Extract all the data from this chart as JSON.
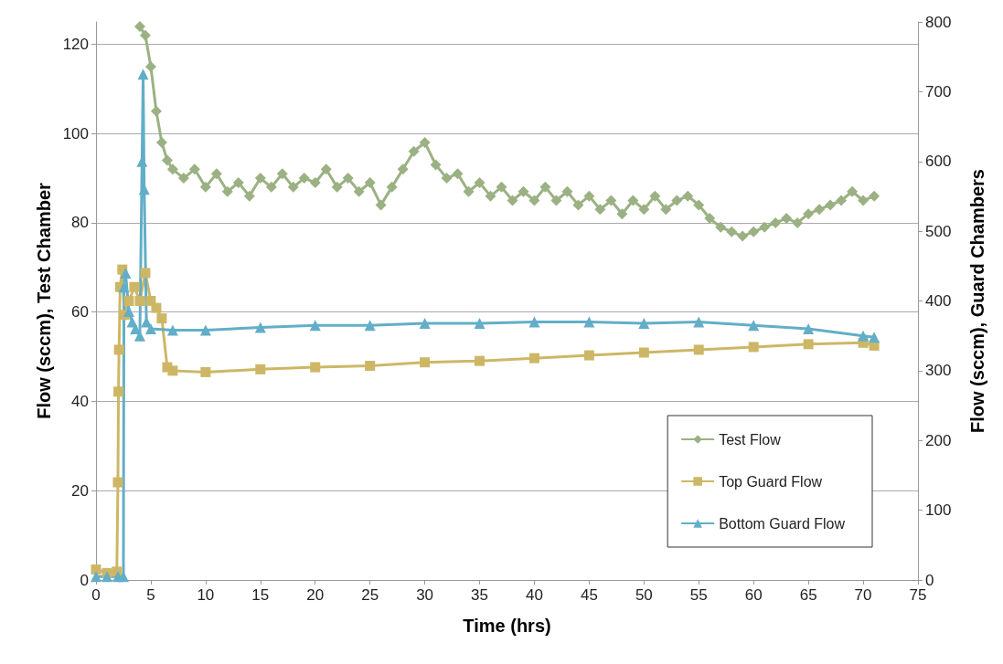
{
  "chart_data": {
    "type": "line",
    "xlabel": "Time (hrs)",
    "ylabel": "Flow (sccm), Test Chamber",
    "y2label": "Flow (sccm), Guard Chambers",
    "xlim": [
      0,
      75
    ],
    "xticks": [
      0,
      5,
      10,
      15,
      20,
      25,
      30,
      35,
      40,
      45,
      50,
      55,
      60,
      65,
      70,
      75
    ],
    "ylim": [
      0,
      125
    ],
    "yticks": [
      0,
      20,
      40,
      60,
      80,
      100,
      120
    ],
    "y2lim": [
      0,
      800
    ],
    "y2ticks": [
      0,
      100,
      200,
      300,
      400,
      500,
      600,
      700,
      800
    ],
    "grid": "y",
    "legend": "bottom right",
    "series": [
      {
        "name": "Test Flow",
        "color": "#9bb183",
        "marker": "diamond",
        "x": [
          4.0,
          4.5,
          5,
          5.5,
          6,
          6.5,
          7,
          8,
          9,
          10,
          11,
          12,
          13,
          14,
          15,
          16,
          17,
          18,
          19,
          20,
          21,
          22,
          23,
          24,
          25,
          26,
          27,
          28,
          29,
          30,
          31,
          32,
          33,
          34,
          35,
          36,
          37,
          38,
          39,
          40,
          41,
          42,
          43,
          44,
          45,
          46,
          47,
          48,
          49,
          50,
          51,
          52,
          53,
          54,
          55,
          56,
          57,
          58,
          59,
          60,
          61,
          62,
          63,
          64,
          65,
          66,
          67,
          68,
          69,
          70,
          71
        ],
        "values": [
          124,
          122,
          115,
          105,
          98,
          94,
          92,
          90,
          92,
          88,
          91,
          87,
          89,
          86,
          90,
          88,
          91,
          88,
          90,
          89,
          92,
          88,
          90,
          87,
          89,
          84,
          88,
          92,
          96,
          98,
          93,
          90,
          91,
          87,
          89,
          86,
          88,
          85,
          87,
          85,
          88,
          85,
          87,
          84,
          86,
          83,
          85,
          82,
          85,
          83,
          86,
          83,
          85,
          86,
          84,
          81,
          79,
          78,
          77,
          78,
          79,
          80,
          81,
          80,
          82,
          83,
          84,
          85,
          87,
          85,
          86
        ]
      },
      {
        "name": "Top Guard Flow",
        "color": "#cdb766",
        "marker": "square",
        "axis": "y2",
        "x": [
          0,
          1,
          1.9,
          2.0,
          2.05,
          2.1,
          2.2,
          2.4,
          2.6,
          3.0,
          3.5,
          4,
          4.5,
          5,
          5.5,
          6,
          6.5,
          7,
          10,
          15,
          20,
          25,
          30,
          35,
          40,
          45,
          50,
          55,
          60,
          65,
          70,
          71
        ],
        "values": [
          15,
          10,
          12,
          140,
          270,
          330,
          420,
          445,
          380,
          400,
          420,
          400,
          440,
          400,
          390,
          375,
          305,
          300,
          298,
          302,
          305,
          307,
          312,
          314,
          318,
          322,
          326,
          330,
          334,
          338,
          340,
          336
        ]
      },
      {
        "name": "Bottom Guard Flow",
        "color": "#62aec8",
        "marker": "triangle",
        "axis": "y2",
        "x": [
          0,
          1,
          2,
          2.5,
          2.55,
          2.7,
          3.0,
          3.3,
          3.6,
          4.0,
          4.2,
          4.3,
          4.4,
          4.6,
          5,
          7,
          10,
          15,
          20,
          25,
          30,
          35,
          40,
          45,
          50,
          55,
          60,
          65,
          70,
          71
        ],
        "values": [
          5,
          5,
          5,
          5,
          420,
          440,
          385,
          370,
          360,
          350,
          600,
          725,
          560,
          370,
          360,
          358,
          358,
          362,
          365,
          365,
          368,
          368,
          370,
          370,
          368,
          370,
          365,
          360,
          350,
          348
        ]
      }
    ]
  }
}
